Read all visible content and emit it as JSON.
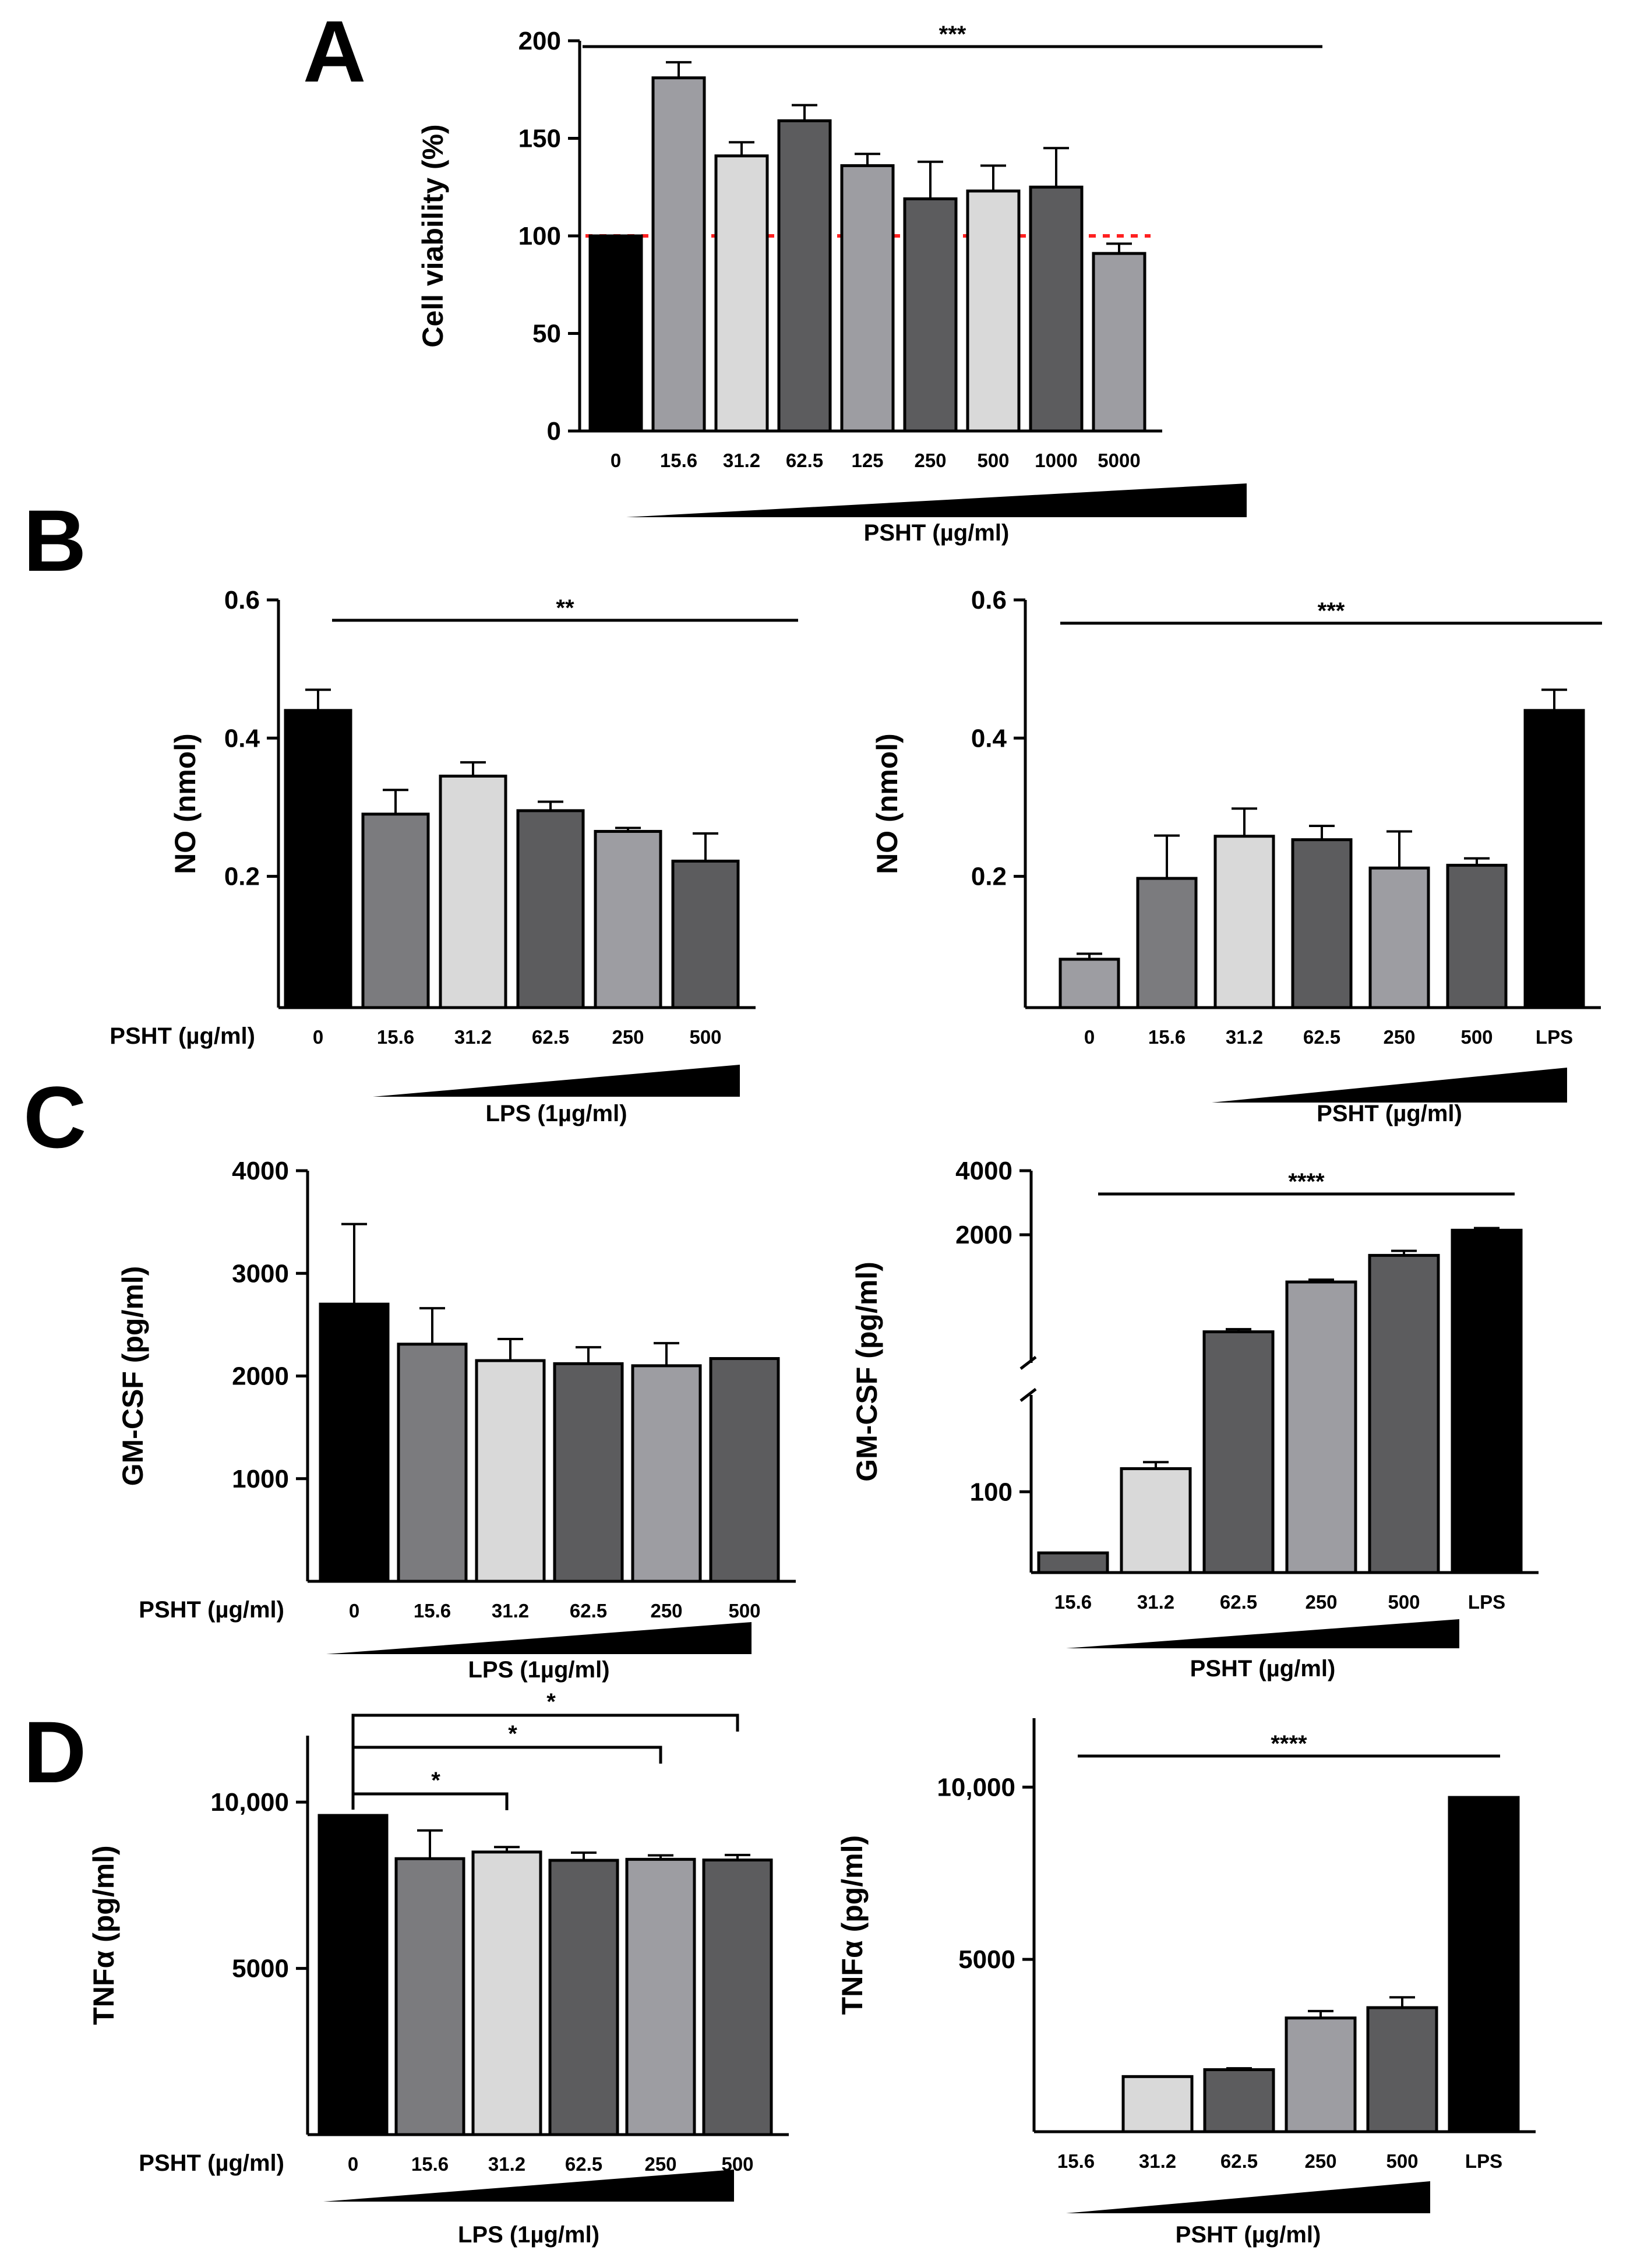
{
  "figure": {
    "panel_letters": [
      "A",
      "B",
      "C",
      "D"
    ],
    "bar_colors": {
      "black": "#000000",
      "light_gray": "#d9d9d9",
      "mid_gray": "#9d9da2",
      "gray": "#7b7b7e",
      "dark_gray": "#5c5c5e",
      "reference_line": "#ff2020"
    }
  },
  "chart_data": [
    {
      "id": "A",
      "type": "bar",
      "title": "",
      "ylabel": "Cell viability (%)",
      "xlabel": "PSHT (µg/ml)",
      "categories": [
        "0",
        "15.6",
        "31.2",
        "62.5",
        "125",
        "250",
        "500",
        "1000",
        "5000"
      ],
      "values": [
        100,
        181,
        141,
        159,
        136,
        119,
        123,
        125,
        91
      ],
      "errors": [
        0,
        8,
        7,
        8,
        6,
        19,
        13,
        20,
        5
      ],
      "colors": [
        "black",
        "mid_gray",
        "light_gray",
        "dark_gray",
        "mid_gray",
        "dark_gray",
        "light_gray",
        "dark_gray",
        "mid_gray"
      ],
      "ylim": [
        0,
        200
      ],
      "yticks": [
        0,
        50,
        100,
        150,
        200
      ],
      "reference_line": 100,
      "significance": [
        {
          "from": 0,
          "to": 8,
          "label": "***"
        }
      ]
    },
    {
      "id": "B-left",
      "type": "bar",
      "ylabel": "NO (nmol)",
      "row_label": "PSHT (µg/ml)",
      "xlabel": "LPS (1µg/ml)",
      "categories": [
        "0",
        "15.6",
        "31.2",
        "62.5",
        "250",
        "500"
      ],
      "values": [
        0.44,
        0.29,
        0.345,
        0.295,
        0.265,
        0.222
      ],
      "errors": [
        0.03,
        0.035,
        0.02,
        0.013,
        0.005,
        0.04
      ],
      "colors": [
        "black",
        "gray",
        "light_gray",
        "dark_gray",
        "mid_gray",
        "dark_gray"
      ],
      "ylim": [
        0.01,
        0.6
      ],
      "yticks": [
        0.2,
        0.4,
        0.6
      ],
      "significance": [
        {
          "from": 0,
          "to": 5,
          "label": "**"
        }
      ]
    },
    {
      "id": "B-right",
      "type": "bar",
      "ylabel": "NO (nmol)",
      "xlabel": "PSHT (µg/ml)",
      "categories": [
        "0",
        "15.6",
        "31.2",
        "62.5",
        "250",
        "500",
        "LPS"
      ],
      "values": [
        0.08,
        0.197,
        0.258,
        0.253,
        0.212,
        0.216,
        0.44
      ],
      "errors": [
        0.008,
        0.062,
        0.04,
        0.02,
        0.053,
        0.01,
        0.03
      ],
      "colors": [
        "mid_gray",
        "gray",
        "light_gray",
        "dark_gray",
        "mid_gray",
        "dark_gray",
        "black"
      ],
      "ylim": [
        0.01,
        0.6
      ],
      "yticks": [
        0.2,
        0.4,
        0.6
      ],
      "significance": [
        {
          "from": 0,
          "to": 6,
          "label": "***"
        }
      ]
    },
    {
      "id": "C-left",
      "type": "bar",
      "ylabel": "GM-CSF (pg/ml)",
      "row_label": "PSHT (µg/ml)",
      "xlabel": "LPS (1µg/ml)",
      "categories": [
        "0",
        "15.6",
        "31.2",
        "62.5",
        "250",
        "500"
      ],
      "values": [
        2700,
        2310,
        2150,
        2120,
        2100,
        2170
      ],
      "errors": [
        780,
        350,
        210,
        160,
        220,
        0
      ],
      "colors": [
        "black",
        "gray",
        "light_gray",
        "dark_gray",
        "mid_gray",
        "dark_gray"
      ],
      "ylim": [
        0,
        4000
      ],
      "yticks": [
        1000,
        2000,
        3000,
        4000
      ]
    },
    {
      "id": "C-right",
      "type": "bar",
      "ylabel": "GM-CSF (pg/ml)",
      "xlabel": "PSHT (µg/ml)",
      "axis": "broken",
      "categories": [
        "15.6",
        "31.2",
        "62.5",
        "250",
        "500",
        "LPS"
      ],
      "values": [
        50,
        130,
        700,
        1200,
        1600,
        2100
      ],
      "errors": [
        0,
        10,
        20,
        30,
        80,
        50
      ],
      "colors": [
        "dark_gray",
        "light_gray",
        "dark_gray",
        "mid_gray",
        "dark_gray",
        "black"
      ],
      "ylim": [
        40,
        4000
      ],
      "yticks": [
        100,
        2000,
        4000
      ],
      "significance": [
        {
          "from": 0,
          "to": 5,
          "label": "****"
        }
      ]
    },
    {
      "id": "D-left",
      "type": "bar",
      "ylabel": "TNFα (pg/ml)",
      "row_label": "PSHT (µg/ml)",
      "xlabel": "LPS (1µg/ml)",
      "categories": [
        "0",
        "15.6",
        "31.2",
        "62.5",
        "250",
        "500"
      ],
      "values": [
        9600,
        8300,
        8500,
        8250,
        8280,
        8260
      ],
      "errors": [
        0,
        850,
        150,
        230,
        120,
        150
      ],
      "colors": [
        "black",
        "gray",
        "light_gray",
        "dark_gray",
        "mid_gray",
        "dark_gray"
      ],
      "ylim": [
        0,
        12000
      ],
      "yticks": [
        5000,
        10000
      ],
      "ytick_labels": [
        "5000",
        "10,000"
      ],
      "significance": [
        {
          "from": 0,
          "to": 2,
          "label": "*"
        },
        {
          "from": 0,
          "to": 4,
          "label": "*"
        },
        {
          "from": 0,
          "to": 5,
          "label": "*"
        }
      ]
    },
    {
      "id": "D-right",
      "type": "bar",
      "ylabel": "TNFα (pg/ml)",
      "xlabel": "PSHT (µg/ml)",
      "categories": [
        "15.6",
        "31.2",
        "62.5",
        "250",
        "500",
        "LPS"
      ],
      "values": [
        0,
        1600,
        1800,
        3300,
        3600,
        9700
      ],
      "errors": [
        0,
        0,
        40,
        200,
        300,
        0
      ],
      "colors": [
        "mid_gray",
        "light_gray",
        "dark_gray",
        "mid_gray",
        "dark_gray",
        "black"
      ],
      "ylim": [
        0,
        12000
      ],
      "yticks": [
        5000,
        10000
      ],
      "ytick_labels": [
        "5000",
        "10,000"
      ],
      "significance": [
        {
          "from": 0,
          "to": 5,
          "label": "****"
        }
      ]
    }
  ]
}
